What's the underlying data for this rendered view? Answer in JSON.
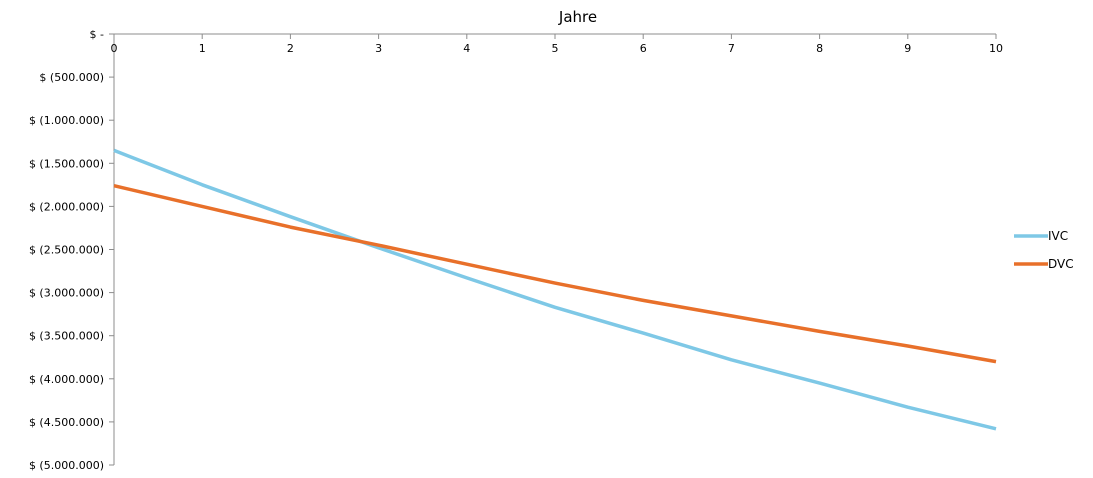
{
  "chart_data": {
    "type": "line",
    "title": "",
    "xlabel": "Jahre",
    "ylabel": "",
    "x": [
      0,
      1,
      2,
      3,
      4,
      5,
      6,
      7,
      8,
      9,
      10
    ],
    "x_tick_labels": [
      "0",
      "1",
      "2",
      "3",
      "4",
      "5",
      "6",
      "7",
      "8",
      "9",
      "10"
    ],
    "xlim": [
      0,
      10
    ],
    "x_axis_position": "top",
    "ylim": [
      -5000000,
      0
    ],
    "y_ticks": [
      0,
      -500000,
      -1000000,
      -1500000,
      -2000000,
      -2500000,
      -3000000,
      -3500000,
      -4000000,
      -4500000,
      -5000000
    ],
    "y_tick_labels": [
      "$ -",
      "$ (500.000)",
      "$ (1.000.000)",
      "$ (1.500.000)",
      "$ (2.000.000)",
      "$ (2.500.000)",
      "$ (3.000.000)",
      "$ (3.500.000)",
      "$ (4.000.000)",
      "$ (4.500.000)",
      "$ (5.000.000)"
    ],
    "grid": false,
    "legend_position": "right",
    "series": [
      {
        "name": "IVC",
        "color": "#7ec8e6",
        "values": [
          -1350000,
          -1750000,
          -2120000,
          -2480000,
          -2830000,
          -3170000,
          -3470000,
          -3780000,
          -4050000,
          -4330000,
          -4580000
        ]
      },
      {
        "name": "DVC",
        "color": "#e8702a",
        "values": [
          -1760000,
          -2000000,
          -2240000,
          -2450000,
          -2670000,
          -2890000,
          -3090000,
          -3270000,
          -3450000,
          -3620000,
          -3800000
        ]
      }
    ]
  }
}
